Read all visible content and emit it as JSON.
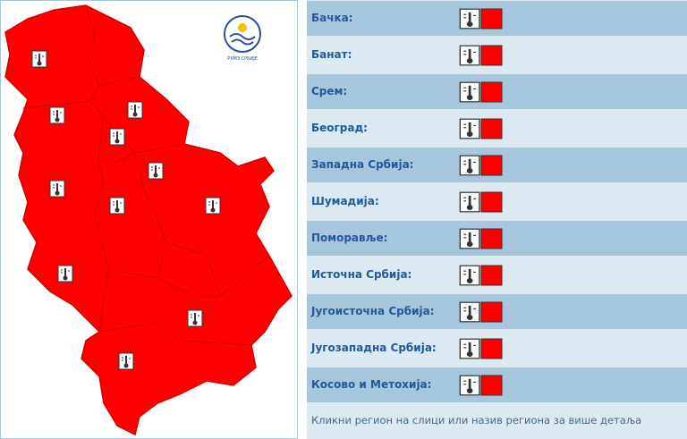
{
  "logo": {
    "text": "РХМЗ СРБИЈЕ"
  },
  "regions": [
    "Бачка:",
    "Банат:",
    "Срем:",
    "Београд:",
    "Западна Србија:",
    "Шумадија:",
    "Поморавље:",
    "Источна Србија:",
    "Југоисточна Србија:",
    "Југозападна Србија:",
    "Косово и Метохија:"
  ],
  "footer": "Кликни регион на слици или назив региона за више детаља"
}
